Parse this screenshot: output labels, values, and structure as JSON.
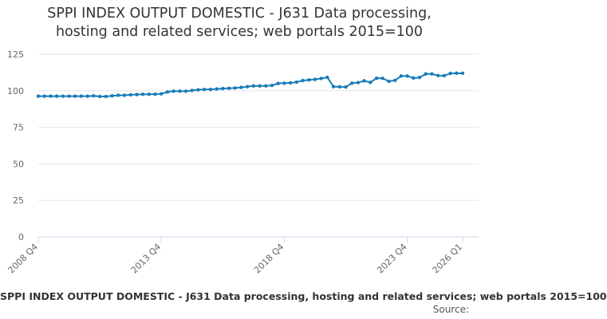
{
  "chart_data": {
    "type": "line",
    "title_line1": "SPPI INDEX OUTPUT DOMESTIC - J631 Data processing,",
    "title_line2": "hosting and related services; web portals 2015=100",
    "title": "SPPI INDEX OUTPUT DOMESTIC - J631 Data processing, hosting and related services; web portals 2015=100",
    "xlabel": "",
    "ylabel": "",
    "ylim": [
      0,
      125
    ],
    "yticks": [
      0,
      25,
      50,
      75,
      100,
      125
    ],
    "xtick_labels": [
      "2008 Q4",
      "2013 Q4",
      "2018 Q4",
      "2023 Q4",
      "2026 Q1"
    ],
    "xtick_indices": [
      0,
      20,
      40,
      60,
      69
    ],
    "legend": {
      "label": "SPPI INDEX OUTPUT DOMESTIC - J631 Data processing, hosting and related services; web portals 2015=100",
      "placement": "bottom"
    },
    "source_label": "Source:",
    "colors": {
      "series": "#1a7cb9",
      "grid": "#e6e6e6",
      "axis": "#ccd6eb"
    },
    "series": [
      {
        "name": "SPPI INDEX OUTPUT DOMESTIC - J631 Data processing, hosting and related services; web portals 2015=100",
        "x": [
          "2008 Q4",
          "2009 Q1",
          "2009 Q2",
          "2009 Q3",
          "2009 Q4",
          "2010 Q1",
          "2010 Q2",
          "2010 Q3",
          "2010 Q4",
          "2011 Q1",
          "2011 Q2",
          "2011 Q3",
          "2011 Q4",
          "2012 Q1",
          "2012 Q2",
          "2012 Q3",
          "2012 Q4",
          "2013 Q1",
          "2013 Q2",
          "2013 Q3",
          "2013 Q4",
          "2014 Q1",
          "2014 Q2",
          "2014 Q3",
          "2014 Q4",
          "2015 Q1",
          "2015 Q2",
          "2015 Q3",
          "2015 Q4",
          "2016 Q1",
          "2016 Q2",
          "2016 Q3",
          "2016 Q4",
          "2017 Q1",
          "2017 Q2",
          "2017 Q3",
          "2017 Q4",
          "2018 Q1",
          "2018 Q2",
          "2018 Q3",
          "2018 Q4",
          "2019 Q1",
          "2019 Q2",
          "2019 Q3",
          "2019 Q4",
          "2020 Q1",
          "2020 Q2",
          "2020 Q3",
          "2020 Q4",
          "2021 Q1",
          "2021 Q2",
          "2021 Q3",
          "2021 Q4",
          "2022 Q1",
          "2022 Q2",
          "2022 Q3",
          "2022 Q4",
          "2023 Q1",
          "2023 Q2",
          "2023 Q3",
          "2023 Q4",
          "2024 Q1",
          "2024 Q2",
          "2024 Q3",
          "2024 Q4",
          "2025 Q1",
          "2025 Q2",
          "2025 Q3",
          "2025 Q4",
          "2026 Q1"
        ],
        "values": [
          96.3,
          96.3,
          96.3,
          96.3,
          96.3,
          96.3,
          96.3,
          96.3,
          96.3,
          96.5,
          96.1,
          96.1,
          96.5,
          96.9,
          96.9,
          97.2,
          97.4,
          97.6,
          97.6,
          97.7,
          97.9,
          99.2,
          99.7,
          99.7,
          99.7,
          100.2,
          100.7,
          100.9,
          100.9,
          101.2,
          101.5,
          101.7,
          101.9,
          102.3,
          102.8,
          103.3,
          103.3,
          103.3,
          103.7,
          105.0,
          105.2,
          105.4,
          105.9,
          107.0,
          107.4,
          107.8,
          108.4,
          109.2,
          102.8,
          102.7,
          102.6,
          105.2,
          105.6,
          106.8,
          105.7,
          108.6,
          108.5,
          106.5,
          107.1,
          110.1,
          110.1,
          108.7,
          109.1,
          111.5,
          111.5,
          110.4,
          110.3,
          111.9,
          112.0,
          112.0
        ]
      }
    ]
  }
}
